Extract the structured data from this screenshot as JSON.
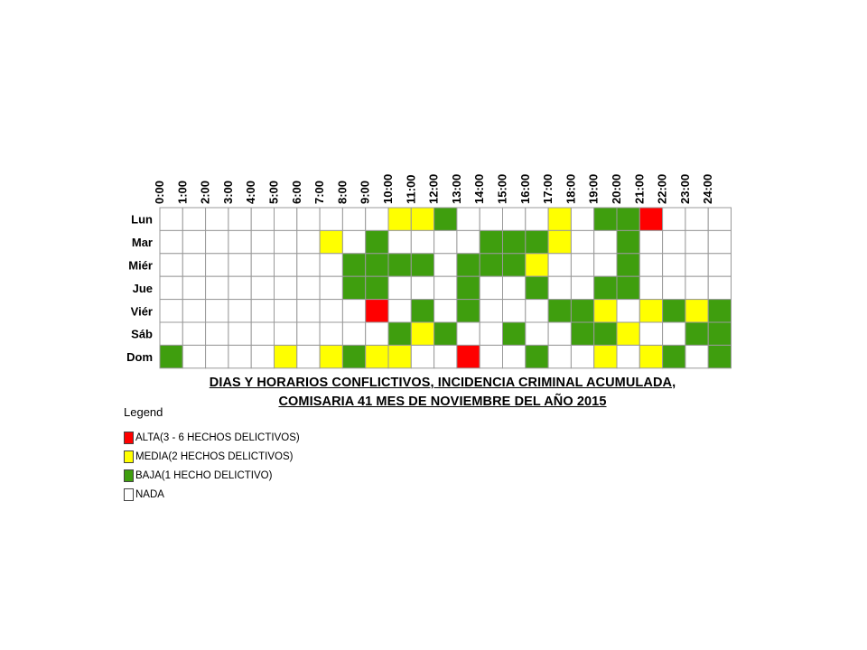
{
  "chart_data": {
    "type": "heatmap",
    "title_lines": [
      "DIAS Y HORARIOS CONFLICTIVOS, INCIDENCIA CRIMINAL ACUMULADA,",
      "COMISARIA 41 MES DE NOVIEMBRE DEL AÑO 2015"
    ],
    "hours": [
      "0:00",
      "1:00",
      "2:00",
      "3:00",
      "4:00",
      "5:00",
      "6:00",
      "7:00",
      "8:00",
      "9:00",
      "10:00",
      "11:00",
      "12:00",
      "13:00",
      "14:00",
      "15:00",
      "16:00",
      "17:00",
      "18:00",
      "19:00",
      "20:00",
      "21:00",
      "22:00",
      "23:00",
      "24:00"
    ],
    "days": [
      "Lun",
      "Mar",
      "Miér",
      "Jue",
      "Viér",
      "Sáb",
      "Dom"
    ],
    "grid": [
      [
        0,
        0,
        0,
        0,
        0,
        0,
        0,
        0,
        0,
        0,
        2,
        2,
        1,
        0,
        0,
        0,
        0,
        2,
        0,
        1,
        1,
        3,
        0,
        0,
        0
      ],
      [
        0,
        0,
        0,
        0,
        0,
        0,
        0,
        2,
        0,
        1,
        0,
        0,
        0,
        0,
        1,
        1,
        1,
        2,
        0,
        0,
        1,
        0,
        0,
        0,
        0
      ],
      [
        0,
        0,
        0,
        0,
        0,
        0,
        0,
        0,
        1,
        1,
        1,
        1,
        0,
        1,
        1,
        1,
        2,
        0,
        0,
        0,
        1,
        0,
        0,
        0,
        0
      ],
      [
        0,
        0,
        0,
        0,
        0,
        0,
        0,
        0,
        1,
        1,
        0,
        0,
        0,
        1,
        0,
        0,
        1,
        0,
        0,
        1,
        1,
        0,
        0,
        0,
        0
      ],
      [
        0,
        0,
        0,
        0,
        0,
        0,
        0,
        0,
        0,
        3,
        0,
        1,
        0,
        1,
        0,
        0,
        0,
        1,
        1,
        2,
        0,
        2,
        1,
        2,
        1
      ],
      [
        0,
        0,
        0,
        0,
        0,
        0,
        0,
        0,
        0,
        0,
        1,
        2,
        1,
        0,
        0,
        1,
        0,
        0,
        1,
        1,
        2,
        0,
        0,
        1,
        1
      ],
      [
        1,
        0,
        0,
        0,
        0,
        2,
        0,
        2,
        1,
        2,
        2,
        0,
        0,
        3,
        0,
        0,
        1,
        0,
        0,
        2,
        0,
        2,
        1,
        0,
        1
      ]
    ],
    "legend": {
      "title": "Legend",
      "items": [
        {
          "level": 3,
          "label": "ALTA(3 - 6 HECHOS DELICTIVOS)",
          "color": "#ff0000"
        },
        {
          "level": 2,
          "label": "MEDIA(2 HECHOS DELICTIVOS)",
          "color": "#ffff00"
        },
        {
          "level": 1,
          "label": "BAJA(1 HECHO DELICTIVO)",
          "color": "#3f9e0e"
        },
        {
          "level": 0,
          "label": "NADA",
          "color": "#ffffff"
        }
      ]
    }
  }
}
